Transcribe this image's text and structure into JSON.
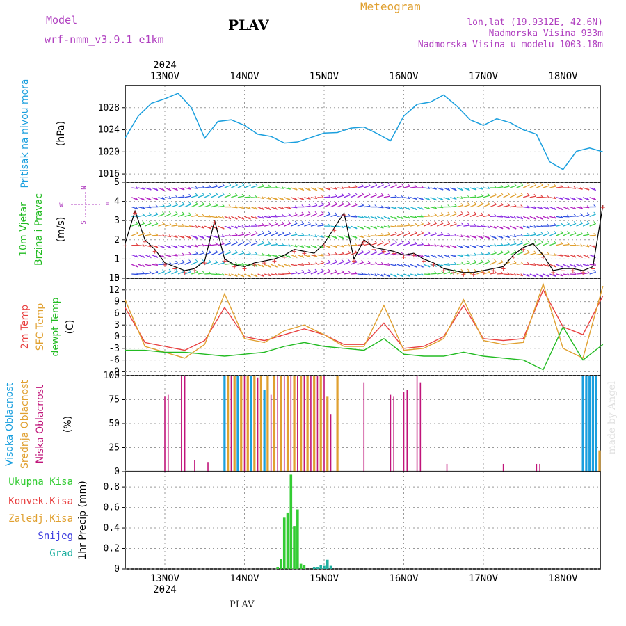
{
  "header": {
    "title": "PLAV",
    "meteogram": "Meteogram",
    "model_label": "Model",
    "model_name": "wrf-nmm_v3.9.1  e1km",
    "coords": "lon,lat (19.9312E, 42.6N)",
    "elev": "Nadmorska Visina 933m",
    "elev_model": "Nadmorska Visina u modelu 1003.18m"
  },
  "footer": {
    "station": "PLAV",
    "watermark": "made by Angel"
  },
  "colors": {
    "pressure": "#1a9fde",
    "temp2m": "#e84040",
    "tsfc": "#e0a030",
    "dewpt": "#22bb22",
    "cloud_high": "#1a9fde",
    "cloud_mid": "#e0a030",
    "cloud_low": "#c0157a",
    "precip": "#33cc33",
    "grad": "#20b0a0"
  },
  "chart_data": [
    {
      "type": "line",
      "name": "pressure",
      "ylabel": [
        "Pritisak na nivou mora",
        "(hPa)"
      ],
      "yticks": [
        1016,
        1020,
        1024,
        1028
      ],
      "ylim": [
        1014.5,
        1032
      ],
      "x_days": [
        "13NOV",
        "14NOV",
        "15NOV",
        "16NOV",
        "17NOV",
        "18NOV"
      ],
      "year": "2024",
      "x_hours": [
        0,
        4,
        8,
        12,
        16,
        20,
        24,
        28,
        32,
        36,
        40,
        44,
        48,
        52,
        56,
        60,
        64,
        68,
        72,
        76,
        80,
        84,
        88,
        92,
        96,
        100,
        104,
        108,
        112,
        116,
        120,
        124,
        128,
        132,
        136,
        140,
        144
      ],
      "values": [
        1022.5,
        1026.5,
        1028.8,
        1029.6,
        1030.6,
        1028.0,
        1022.5,
        1025.5,
        1025.8,
        1024.8,
        1023.2,
        1022.8,
        1021.6,
        1021.8,
        1022.6,
        1023.4,
        1023.5,
        1024.3,
        1024.5,
        1023.3,
        1022.0,
        1026.5,
        1028.6,
        1029.0,
        1030.3,
        1028.3,
        1025.8,
        1024.8,
        1026.0,
        1025.3,
        1024.0,
        1023.2,
        1018.2,
        1016.8,
        1020.1,
        1020.7,
        1020.0
      ]
    },
    {
      "type": "line",
      "name": "wind",
      "ylabel": [
        "10m Vjetar",
        "Brzina i Pravac",
        "(m/s)"
      ],
      "yticks": [
        0,
        1,
        2,
        3,
        4,
        5
      ],
      "ylim": [
        0,
        5
      ],
      "compass": [
        "N",
        "S",
        "W",
        "E"
      ],
      "x_hours": [
        0,
        3,
        6,
        9,
        12,
        15,
        18,
        21,
        24,
        27,
        30,
        33,
        36,
        39,
        42,
        45,
        48,
        51,
        54,
        57,
        60,
        63,
        66,
        69,
        72,
        75,
        78,
        81,
        84,
        87,
        90,
        93,
        96,
        99,
        102,
        105,
        108,
        111,
        114,
        117,
        120,
        123,
        126,
        129,
        132,
        135,
        138,
        141,
        144
      ],
      "speed": [
        1.8,
        3.5,
        2.0,
        1.5,
        0.8,
        0.6,
        0.4,
        0.5,
        0.9,
        3.0,
        1.0,
        0.7,
        0.6,
        0.8,
        0.9,
        1.0,
        1.2,
        1.5,
        1.4,
        1.3,
        1.8,
        2.6,
        3.4,
        1.0,
        2.0,
        1.6,
        1.5,
        1.4,
        1.2,
        1.3,
        1.0,
        0.8,
        0.5,
        0.4,
        0.3,
        0.3,
        0.4,
        0.5,
        0.6,
        1.2,
        1.6,
        1.8,
        1.2,
        0.4,
        0.5,
        0.5,
        0.4,
        0.6,
        3.8
      ]
    },
    {
      "type": "line",
      "name": "temperature",
      "ylabel": [
        "2m Temp",
        "SFC Temp",
        "dewpt Temp",
        "(C)"
      ],
      "yticks": [
        -9,
        -6,
        -3,
        0,
        3,
        6,
        9,
        12,
        15
      ],
      "ylim": [
        -10,
        15
      ],
      "x_hours": [
        0,
        6,
        12,
        18,
        24,
        30,
        36,
        42,
        48,
        54,
        60,
        66,
        72,
        78,
        84,
        90,
        96,
        102,
        108,
        114,
        120,
        126,
        132,
        138,
        144
      ],
      "series": [
        {
          "name": "2m Temp",
          "values": [
            7.5,
            -1.5,
            -2.5,
            -3.5,
            -1.0,
            7.5,
            0.0,
            -1.0,
            0.5,
            2.0,
            0.5,
            -2.0,
            -2.0,
            3.5,
            -3.0,
            -2.5,
            0.0,
            8.0,
            -0.5,
            -1.0,
            -0.5,
            12.0,
            2.5,
            0.5,
            10.5
          ]
        },
        {
          "name": "SFC Temp",
          "values": [
            9.5,
            -2.5,
            -4.0,
            -5.5,
            -2.0,
            11.0,
            -0.5,
            -1.5,
            1.5,
            3.0,
            0.5,
            -2.5,
            -2.5,
            8.0,
            -3.5,
            -3.0,
            -0.5,
            9.5,
            -1.0,
            -2.0,
            -1.5,
            13.5,
            -3.0,
            -5.5,
            13.0
          ]
        },
        {
          "name": "dewpt Temp",
          "values": [
            -3.5,
            -3.5,
            -4.0,
            -4.0,
            -4.5,
            -5.0,
            -4.5,
            -4.0,
            -2.5,
            -1.5,
            -2.5,
            -3.0,
            -3.5,
            -0.5,
            -4.5,
            -5.0,
            -5.0,
            -4.0,
            -5.0,
            -5.5,
            -6.0,
            -8.5,
            2.5,
            -6.0,
            -2.0
          ]
        }
      ]
    },
    {
      "type": "bar",
      "name": "clouds",
      "ylabel": [
        "Visoka Oblacnost",
        "Srednja Oblacnost",
        "Niska Oblacnost",
        "(%)"
      ],
      "yticks": [
        0,
        25,
        50,
        75,
        100
      ],
      "ylim": [
        0,
        100
      ],
      "bars": [
        {
          "x": 12,
          "series": "low",
          "v": 78
        },
        {
          "x": 13,
          "series": "low",
          "v": 80
        },
        {
          "x": 17,
          "series": "low",
          "v": 100
        },
        {
          "x": 18,
          "series": "low",
          "v": 100
        },
        {
          "x": 21,
          "series": "low",
          "v": 12
        },
        {
          "x": 25,
          "series": "low",
          "v": 10
        },
        {
          "x": 30,
          "series": "high",
          "v": 100
        },
        {
          "x": 31,
          "series": "mid",
          "v": 100
        },
        {
          "x": 32,
          "series": "low",
          "v": 100
        },
        {
          "x": 33,
          "series": "mid",
          "v": 100
        },
        {
          "x": 34,
          "series": "high",
          "v": 100
        },
        {
          "x": 35,
          "series": "mid",
          "v": 100
        },
        {
          "x": 36,
          "series": "low",
          "v": 100
        },
        {
          "x": 37,
          "series": "mid",
          "v": 100
        },
        {
          "x": 38,
          "series": "high",
          "v": 100
        },
        {
          "x": 39,
          "series": "mid",
          "v": 100
        },
        {
          "x": 40,
          "series": "low",
          "v": 98
        },
        {
          "x": 41,
          "series": "mid",
          "v": 100
        },
        {
          "x": 42,
          "series": "high",
          "v": 85
        },
        {
          "x": 43,
          "series": "mid",
          "v": 100
        },
        {
          "x": 44,
          "series": "low",
          "v": 80
        },
        {
          "x": 45,
          "series": "mid",
          "v": 100
        },
        {
          "x": 46,
          "series": "low",
          "v": 100
        },
        {
          "x": 47,
          "series": "mid",
          "v": 100
        },
        {
          "x": 48,
          "series": "low",
          "v": 100
        },
        {
          "x": 49,
          "series": "mid",
          "v": 100
        },
        {
          "x": 50,
          "series": "low",
          "v": 100
        },
        {
          "x": 51,
          "series": "mid",
          "v": 100
        },
        {
          "x": 52,
          "series": "low",
          "v": 100
        },
        {
          "x": 53,
          "series": "mid",
          "v": 100
        },
        {
          "x": 54,
          "series": "low",
          "v": 100
        },
        {
          "x": 55,
          "series": "mid",
          "v": 100
        },
        {
          "x": 56,
          "series": "low",
          "v": 100
        },
        {
          "x": 57,
          "series": "mid",
          "v": 100
        },
        {
          "x": 58,
          "series": "low",
          "v": 100
        },
        {
          "x": 59,
          "series": "mid",
          "v": 100
        },
        {
          "x": 60,
          "series": "low",
          "v": 100
        },
        {
          "x": 61,
          "series": "mid",
          "v": 78
        },
        {
          "x": 62,
          "series": "low",
          "v": 60
        },
        {
          "x": 64,
          "series": "mid",
          "v": 100
        },
        {
          "x": 72,
          "series": "low",
          "v": 93
        },
        {
          "x": 80,
          "series": "low",
          "v": 80
        },
        {
          "x": 81,
          "series": "low",
          "v": 78
        },
        {
          "x": 84,
          "series": "low",
          "v": 83
        },
        {
          "x": 85,
          "series": "low",
          "v": 85
        },
        {
          "x": 88,
          "series": "low",
          "v": 100
        },
        {
          "x": 89,
          "series": "low",
          "v": 93
        },
        {
          "x": 97,
          "series": "low",
          "v": 8
        },
        {
          "x": 114,
          "series": "low",
          "v": 8
        },
        {
          "x": 124,
          "series": "low",
          "v": 8
        },
        {
          "x": 125,
          "series": "low",
          "v": 8
        },
        {
          "x": 138,
          "series": "high",
          "v": 100
        },
        {
          "x": 139,
          "series": "high",
          "v": 100
        },
        {
          "x": 140,
          "series": "high",
          "v": 100
        },
        {
          "x": 141,
          "series": "high",
          "v": 100
        },
        {
          "x": 142,
          "series": "high",
          "v": 100
        },
        {
          "x": 143,
          "series": "mid",
          "v": 22
        }
      ]
    },
    {
      "type": "bar",
      "name": "precipitation",
      "ylabel": [
        "1hr Precip (mm)"
      ],
      "legend": [
        "Ukupna Kisa",
        "Konvek.Kisa",
        "Zaledj.Kisa",
        "Snijeg",
        "Grad"
      ],
      "yticks": [
        0,
        0.2,
        0.4,
        0.6,
        0.8
      ],
      "ylim": [
        0,
        0.95
      ],
      "x_days": [
        "13NOV",
        "14NOV",
        "15NOV",
        "16NOV",
        "17NOV",
        "18NOV"
      ],
      "year": "2024",
      "bars": [
        {
          "x": 46,
          "v": 0.02
        },
        {
          "x": 47,
          "v": 0.1
        },
        {
          "x": 48,
          "v": 0.5
        },
        {
          "x": 49,
          "v": 0.55
        },
        {
          "x": 50,
          "v": 0.92
        },
        {
          "x": 51,
          "v": 0.42
        },
        {
          "x": 52,
          "v": 0.58
        },
        {
          "x": 53,
          "v": 0.05
        },
        {
          "x": 54,
          "v": 0.04
        },
        {
          "x": 57,
          "v": 0.02
        },
        {
          "x": 58,
          "v": 0.02
        },
        {
          "x": 59,
          "v": 0.04
        },
        {
          "x": 60,
          "v": 0.03
        },
        {
          "x": 61,
          "v": 0.09
        },
        {
          "x": 62,
          "v": 0.03
        }
      ]
    }
  ]
}
